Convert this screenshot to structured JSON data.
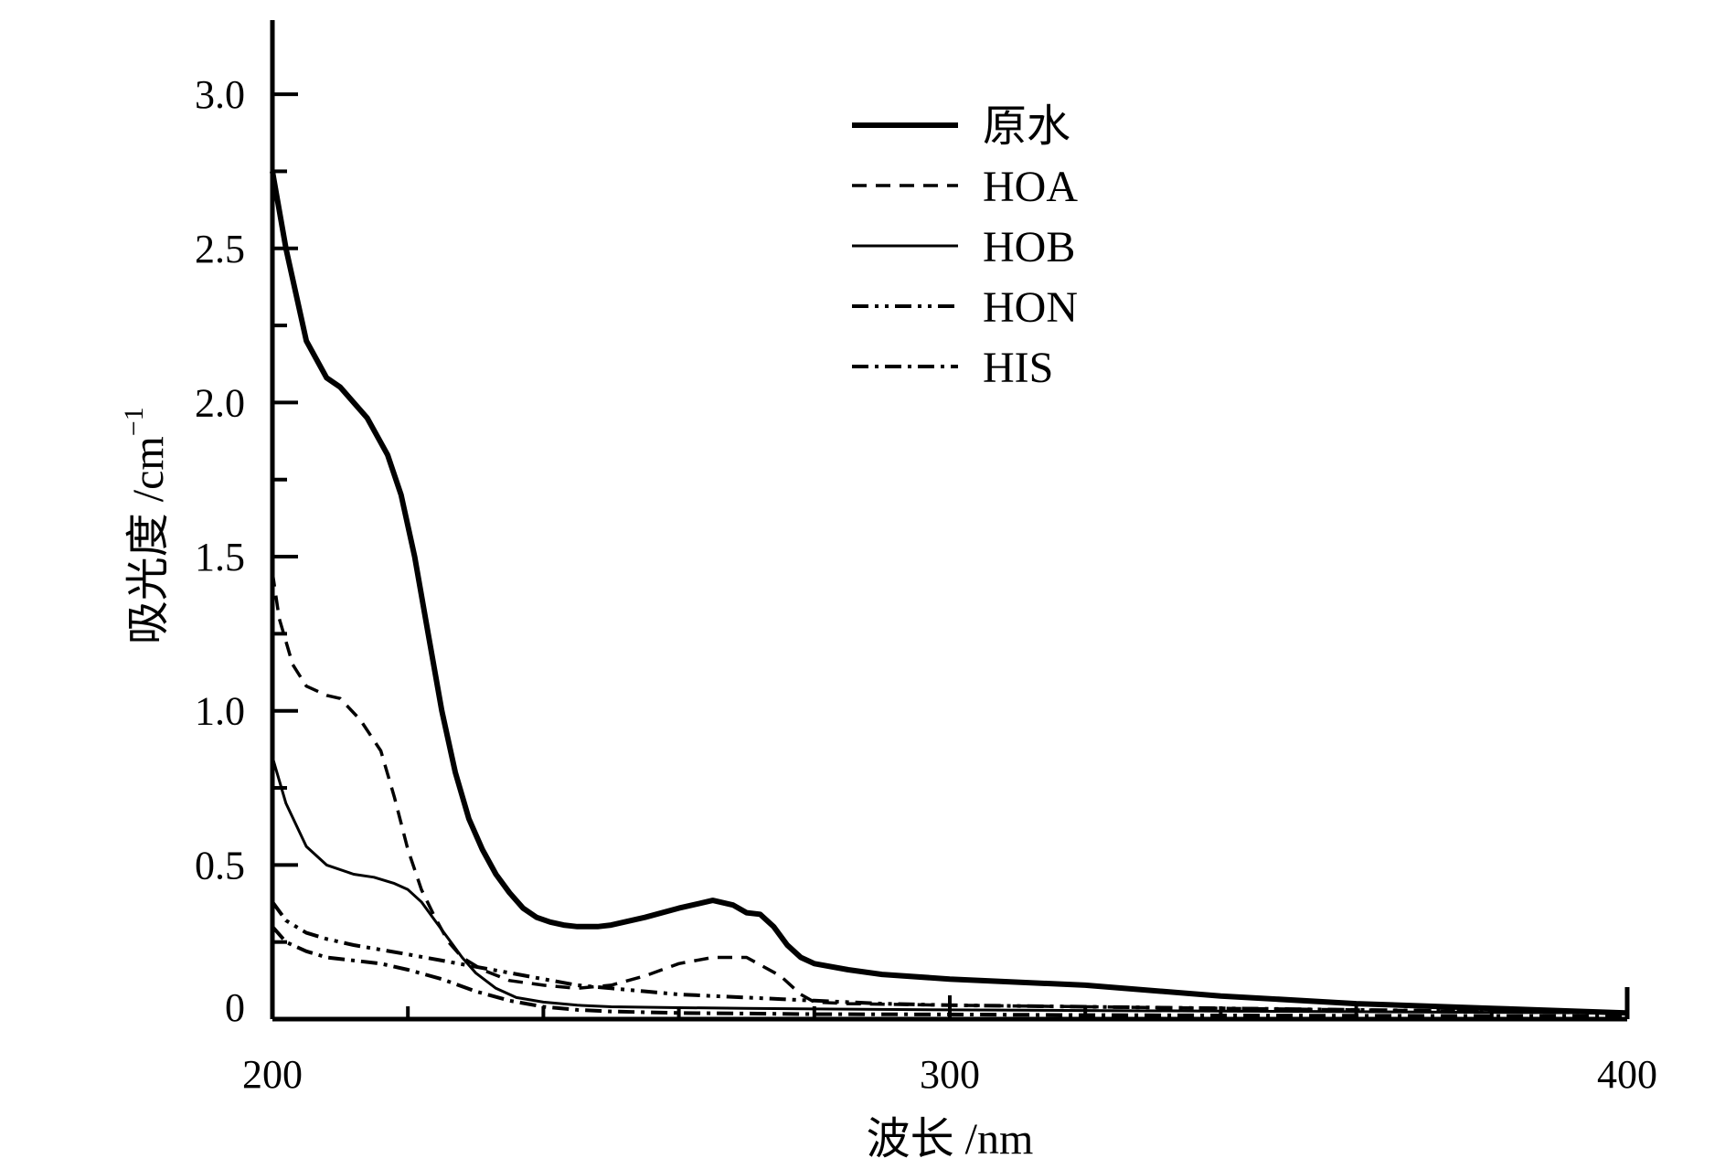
{
  "chart_data": {
    "type": "line",
    "xlabel": "波长 /nm",
    "ylabel": "吸光度 /cm",
    "ylabel_sup": "−1",
    "xlim": [
      200,
      400
    ],
    "ylim": [
      0,
      3.25
    ],
    "xticks": [
      200,
      300,
      400
    ],
    "xtick_labels": [
      "200",
      "300",
      "400"
    ],
    "yticks": [
      0,
      0.5,
      1.0,
      1.5,
      2.0,
      2.5,
      3.0
    ],
    "ytick_labels": [
      "0",
      "0.5",
      "1.0",
      "1.5",
      "2.0",
      "2.5",
      "3.0"
    ],
    "grid": false,
    "legend_position": "top-center",
    "series": [
      {
        "name": "原水",
        "style": "solid-thick",
        "x": [
          200,
          202,
          205,
          208,
          210,
          214,
          217,
          219,
          221,
          223,
          225,
          227,
          229,
          231,
          233,
          235,
          237,
          239,
          241,
          243,
          245,
          248,
          250,
          255,
          260,
          265,
          268,
          270,
          272,
          274,
          276,
          278,
          280,
          285,
          290,
          300,
          320,
          340,
          360,
          380,
          400
        ],
        "y": [
          2.75,
          2.5,
          2.2,
          2.08,
          2.05,
          1.95,
          1.83,
          1.7,
          1.5,
          1.25,
          1.0,
          0.8,
          0.65,
          0.55,
          0.47,
          0.41,
          0.36,
          0.33,
          0.315,
          0.305,
          0.3,
          0.3,
          0.305,
          0.33,
          0.36,
          0.385,
          0.37,
          0.345,
          0.34,
          0.3,
          0.24,
          0.2,
          0.18,
          0.16,
          0.145,
          0.13,
          0.11,
          0.075,
          0.05,
          0.035,
          0.02
        ]
      },
      {
        "name": "HOA",
        "style": "dashed",
        "x": [
          200,
          201,
          203,
          205,
          208,
          210,
          213,
          216,
          218,
          220,
          222,
          224,
          226,
          228,
          231,
          235,
          240,
          245,
          250,
          255,
          260,
          265,
          270,
          275,
          278,
          280,
          285,
          300,
          320,
          340,
          360,
          380,
          400
        ],
        "y": [
          1.45,
          1.3,
          1.15,
          1.08,
          1.05,
          1.04,
          0.97,
          0.87,
          0.72,
          0.55,
          0.42,
          0.33,
          0.25,
          0.2,
          0.16,
          0.125,
          0.11,
          0.1,
          0.11,
          0.14,
          0.18,
          0.2,
          0.2,
          0.14,
          0.08,
          0.055,
          0.05,
          0.045,
          0.04,
          0.035,
          0.03,
          0.025,
          0.02
        ]
      },
      {
        "name": "HOB",
        "style": "solid-thin",
        "x": [
          200,
          202,
          205,
          208,
          212,
          215,
          218,
          220,
          222,
          224,
          226,
          228,
          230,
          233,
          236,
          240,
          245,
          250,
          260,
          270,
          280,
          300,
          320,
          340,
          360,
          380,
          400
        ],
        "y": [
          0.85,
          0.7,
          0.56,
          0.5,
          0.47,
          0.46,
          0.44,
          0.42,
          0.38,
          0.32,
          0.26,
          0.2,
          0.15,
          0.1,
          0.07,
          0.055,
          0.045,
          0.04,
          0.037,
          0.035,
          0.033,
          0.03,
          0.028,
          0.026,
          0.024,
          0.022,
          0.02
        ]
      },
      {
        "name": "HON",
        "style": "dash-dot-dot",
        "x": [
          200,
          202,
          205,
          208,
          212,
          216,
          220,
          225,
          230,
          235,
          240,
          245,
          250,
          255,
          260,
          265,
          270,
          275,
          280,
          290,
          300,
          320,
          340,
          360,
          380,
          400
        ],
        "y": [
          0.38,
          0.32,
          0.28,
          0.26,
          0.24,
          0.225,
          0.21,
          0.19,
          0.17,
          0.15,
          0.13,
          0.11,
          0.1,
          0.09,
          0.08,
          0.075,
          0.07,
          0.065,
          0.06,
          0.05,
          0.045,
          0.04,
          0.035,
          0.03,
          0.025,
          0.02
        ]
      },
      {
        "name": "HIS",
        "style": "dash-dot",
        "x": [
          200,
          202,
          205,
          208,
          212,
          216,
          220,
          225,
          230,
          235,
          240,
          245,
          250,
          260,
          270,
          280,
          300,
          320,
          340,
          360,
          380,
          400
        ],
        "y": [
          0.3,
          0.25,
          0.22,
          0.2,
          0.19,
          0.18,
          0.16,
          0.13,
          0.09,
          0.06,
          0.04,
          0.03,
          0.025,
          0.02,
          0.018,
          0.016,
          0.015,
          0.013,
          0.012,
          0.011,
          0.01,
          0.01
        ]
      }
    ]
  }
}
